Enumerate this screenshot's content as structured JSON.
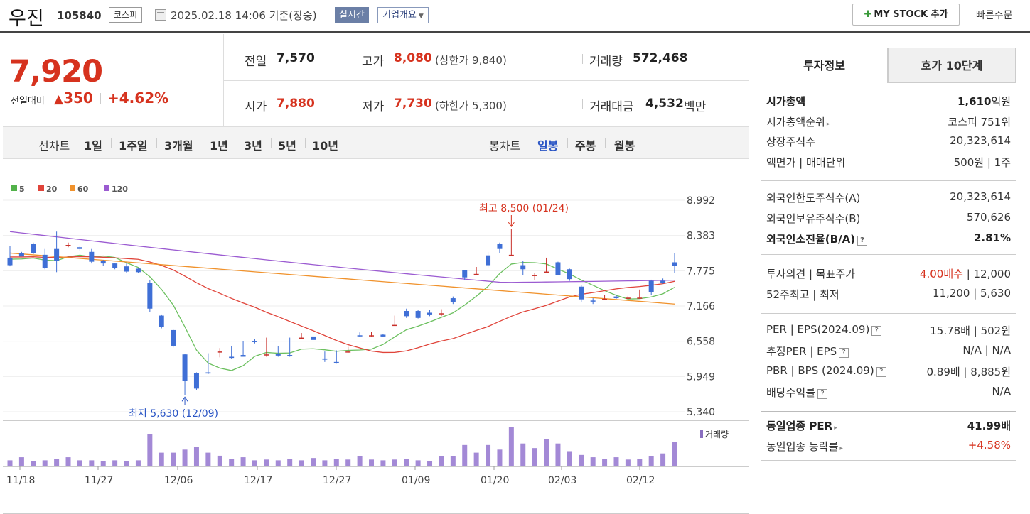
{
  "header": {
    "name": "우진",
    "code": "105840",
    "market": "코스피",
    "datetime": "2025.02.18 14:06 기준(장중)",
    "realtime": "실시간",
    "overview": "기업개요",
    "mystock": "MY STOCK 추가",
    "quick_order": "빠른주문"
  },
  "price": {
    "current": "7,920",
    "change_label": "전일대비",
    "change_value": "350",
    "change_pct": "+4.62%",
    "prev_label": "전일",
    "prev": "7,570",
    "high_label": "고가",
    "high": "8,080",
    "upper_limit": "(상한가 9,840)",
    "volume_label": "거래량",
    "volume": "572,468",
    "open_label": "시가",
    "open": "7,880",
    "low_label": "저가",
    "low": "7,730",
    "lower_limit": "(하한가 5,300)",
    "amount_label": "거래대금",
    "amount": "4,532",
    "amount_unit": "백만"
  },
  "period_bar": {
    "line_chart_label": "선차트",
    "periods": [
      "1일",
      "1주일",
      "3개월",
      "1년",
      "3년",
      "5년",
      "10년"
    ],
    "candle_label": "봉차트",
    "candle_periods": [
      "일봉",
      "주봉",
      "월봉"
    ],
    "active_candle": "일봉"
  },
  "legend": [
    {
      "label": "5",
      "color": "#52b24a"
    },
    {
      "label": "20",
      "color": "#e0443a"
    },
    {
      "label": "60",
      "color": "#f0922c"
    },
    {
      "label": "120",
      "color": "#9b5bd1"
    }
  ],
  "annotations": {
    "high": "최고 8,500 (01/24)",
    "low": "최저 5,630 (12/09)",
    "volume_legend": "거래량"
  },
  "chart_data": {
    "type": "candlestick",
    "y_ticks": [
      "8,992",
      "8,383",
      "7,775",
      "7,166",
      "6,558",
      "5,949",
      "5,340"
    ],
    "ylim": [
      5340,
      8992
    ],
    "x_ticks": [
      "11/18",
      "11/27",
      "12/06",
      "12/17",
      "12/27",
      "01/09",
      "01/20",
      "02/03",
      "02/12"
    ],
    "candles": [
      [
        8000,
        8170,
        7870,
        7850,
        8200
      ],
      [
        8080,
        8060,
        8020,
        8040,
        8100
      ],
      [
        8240,
        8100,
        8080,
        8060,
        8260
      ],
      [
        8050,
        8120,
        7820,
        7800,
        8150
      ],
      [
        8150,
        7990,
        7950,
        7750,
        8450
      ],
      [
        8200,
        8240,
        8220,
        8180,
        8260
      ],
      [
        8180,
        8150,
        8150,
        8120,
        8200
      ],
      [
        8100,
        8130,
        7930,
        7900,
        8150
      ],
      [
        7950,
        7940,
        7900,
        7860,
        7960
      ],
      [
        7900,
        7860,
        7820,
        7800,
        7900
      ],
      [
        7850,
        7900,
        7760,
        7740,
        7910
      ],
      [
        7810,
        7780,
        7750,
        7740,
        7820
      ],
      [
        7560,
        7580,
        7120,
        7060,
        7620
      ],
      [
        7000,
        6940,
        6810,
        6780,
        7020
      ],
      [
        6750,
        6700,
        6480,
        6450,
        6760
      ],
      [
        6330,
        6330,
        5870,
        5630,
        6340
      ],
      [
        6010,
        5900,
        5740,
        5720,
        6020
      ],
      [
        6020,
        6300,
        6000,
        5990,
        6350
      ],
      [
        6380,
        6400,
        6380,
        6280,
        6440
      ],
      [
        6290,
        6300,
        6270,
        6260,
        6480
      ],
      [
        6320,
        6540,
        6290,
        6290,
        6560
      ],
      [
        6560,
        6580,
        6550,
        6520,
        6600
      ],
      [
        6330,
        6600,
        6330,
        6290,
        6620
      ],
      [
        6340,
        6320,
        6310,
        6290,
        6480
      ],
      [
        6320,
        6600,
        6300,
        6290,
        6620
      ],
      [
        6620,
        6690,
        6620,
        6600,
        6700
      ],
      [
        6640,
        6580,
        6580,
        6560,
        6680
      ],
      [
        6260,
        6370,
        6240,
        6200,
        6380
      ],
      [
        6200,
        6380,
        6180,
        6170,
        6400
      ],
      [
        6380,
        6440,
        6380,
        6360,
        6460
      ],
      [
        6660,
        6700,
        6650,
        6630,
        6710
      ],
      [
        6660,
        6690,
        6660,
        6640,
        6720
      ],
      [
        6670,
        6650,
        6640,
        6640,
        6680
      ],
      [
        6840,
        6980,
        6840,
        6830,
        7000
      ],
      [
        7080,
        7110,
        6990,
        6960,
        7120
      ],
      [
        7080,
        6990,
        6960,
        6950,
        7100
      ],
      [
        7050,
        7030,
        7020,
        6990,
        7100
      ],
      [
        7030,
        7100,
        7040,
        6990,
        7110
      ],
      [
        7300,
        7210,
        7230,
        7200,
        7330
      ],
      [
        7780,
        7640,
        7660,
        7610,
        7790
      ],
      [
        7710,
        7830,
        7720,
        7700,
        7840
      ],
      [
        8040,
        7840,
        7870,
        7830,
        8100
      ],
      [
        8240,
        8080,
        8150,
        8080,
        8260
      ],
      [
        8040,
        8320,
        8050,
        8030,
        8500
      ],
      [
        7870,
        7820,
        7800,
        7700,
        7950
      ],
      [
        7700,
        7710,
        7700,
        7620,
        7730
      ],
      [
        7740,
        7870,
        7760,
        7740,
        8000
      ],
      [
        7920,
        7710,
        7700,
        7700,
        7930
      ],
      [
        7800,
        7620,
        7630,
        7600,
        7810
      ],
      [
        7500,
        7250,
        7280,
        7240,
        7520
      ],
      [
        7260,
        7270,
        7250,
        7200,
        7300
      ],
      [
        7280,
        7330,
        7290,
        7280,
        7350
      ],
      [
        7330,
        7300,
        7300,
        7290,
        7350
      ],
      [
        7290,
        7330,
        7310,
        7280,
        7340
      ],
      [
        7300,
        7420,
        7310,
        7290,
        7450
      ],
      [
        7600,
        7400,
        7400,
        7350,
        7620
      ],
      [
        7600,
        7560,
        7560,
        7550,
        7640
      ],
      [
        7920,
        7880,
        7860,
        7730,
        8080
      ]
    ],
    "volume": [
      8,
      12,
      7,
      8,
      10,
      12,
      8,
      8,
      7,
      8,
      7,
      8,
      42,
      18,
      18,
      22,
      26,
      18,
      14,
      10,
      12,
      8,
      9,
      8,
      10,
      8,
      11,
      8,
      10,
      9,
      13,
      9,
      8,
      9,
      10,
      8,
      7,
      13,
      13,
      28,
      18,
      28,
      22,
      52,
      30,
      24,
      36,
      30,
      20,
      15,
      12,
      10,
      12,
      9,
      10,
      13,
      17,
      32
    ],
    "ma_series": [
      "5",
      "20",
      "60",
      "120"
    ]
  },
  "right_panel": {
    "tab_active": "투자정보",
    "tab_inactive": "호가 10단계",
    "group1": [
      {
        "label": "시가총액",
        "value": "1,610",
        "unit": "억원",
        "strong": true
      },
      {
        "label": "시가총액순위",
        "value": "코스피 751위",
        "arrow": true
      },
      {
        "label": "상장주식수",
        "value": "20,323,614"
      },
      {
        "label": "액면가 | 매매단위",
        "value": "500원 | 1주"
      }
    ],
    "group2": [
      {
        "label": "외국인한도주식수(A)",
        "value": "20,323,614"
      },
      {
        "label": "외국인보유주식수(B)",
        "value": "570,626"
      },
      {
        "label": "외국인소진율(B/A)",
        "value": "2.81%",
        "strong": true
      }
    ],
    "group3": [
      {
        "label": "투자의견 | 목표주가",
        "value_red": "4.00매수",
        "value": " | 12,000"
      },
      {
        "label": "52주최고 | 최저",
        "value": "11,200 | 5,630"
      }
    ],
    "group4": [
      {
        "label": "PER | EPS(2024.09)",
        "value": "15.78배 | 502원"
      },
      {
        "label": "추정PER | EPS",
        "value": "N/A | N/A"
      },
      {
        "label": "PBR | BPS (2024.09)",
        "value": "0.89배 | 8,885원"
      },
      {
        "label": "배당수익률",
        "value": "N/A"
      }
    ],
    "group5": [
      {
        "label": "동일업종 PER",
        "value": "41.99배",
        "strong": true
      },
      {
        "label": "동일업종 등락률",
        "value": "+4.58%",
        "red": true
      }
    ]
  }
}
